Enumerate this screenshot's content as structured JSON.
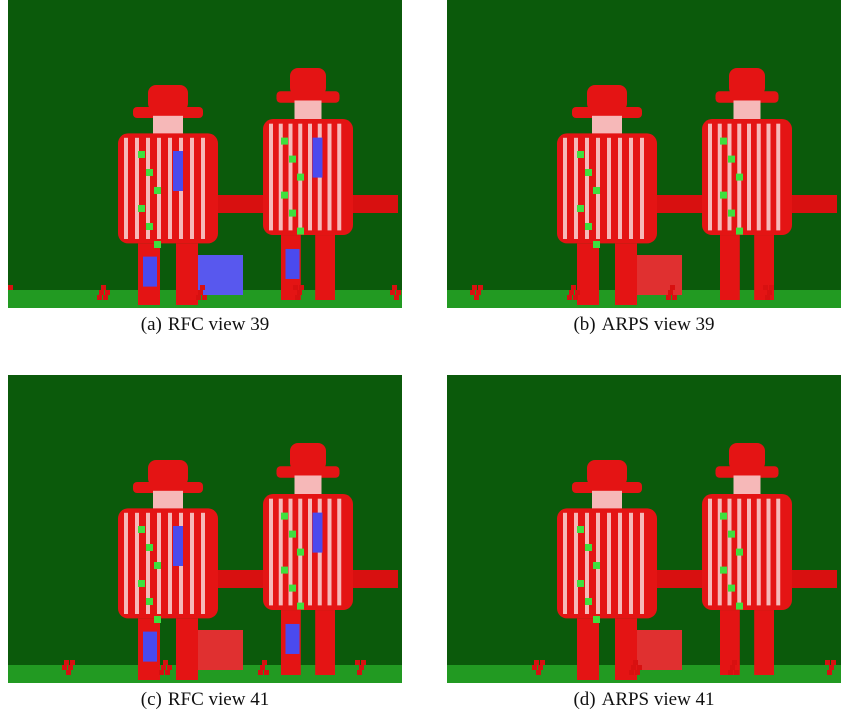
{
  "figure": {
    "panels": [
      {
        "label": "(a)",
        "caption": "RFC view 39"
      },
      {
        "label": "(b)",
        "caption": "ARPS view 39"
      },
      {
        "label": "(c)",
        "caption": "RFC view 41"
      },
      {
        "label": "(d)",
        "caption": "ARPS view 41"
      }
    ]
  }
}
